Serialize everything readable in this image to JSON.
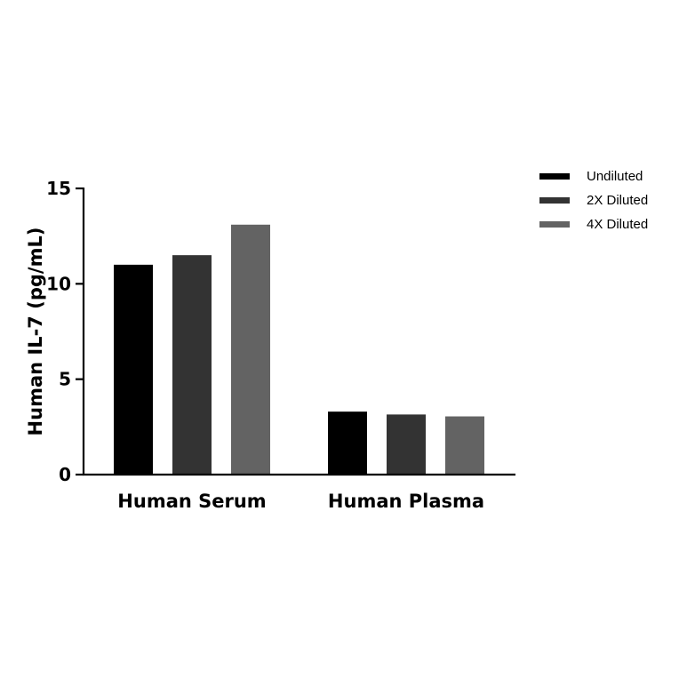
{
  "chart_data": {
    "type": "bar",
    "categories": [
      "Human Serum",
      "Human Plasma"
    ],
    "series": [
      {
        "name": "Undiluted",
        "values": [
          11.0,
          3.3
        ],
        "color": "#000000"
      },
      {
        "name": "2X Diluted",
        "values": [
          11.5,
          3.15
        ],
        "color": "#333333"
      },
      {
        "name": "4X Diluted",
        "values": [
          13.1,
          3.05
        ],
        "color": "#636363"
      }
    ],
    "ylabel": "Human IL-7 (pg/mL)",
    "xlabel": "",
    "ylim": [
      0,
      15
    ],
    "yticks": [
      0,
      5,
      10,
      15
    ],
    "grid": false,
    "legend_position": "top-right"
  }
}
